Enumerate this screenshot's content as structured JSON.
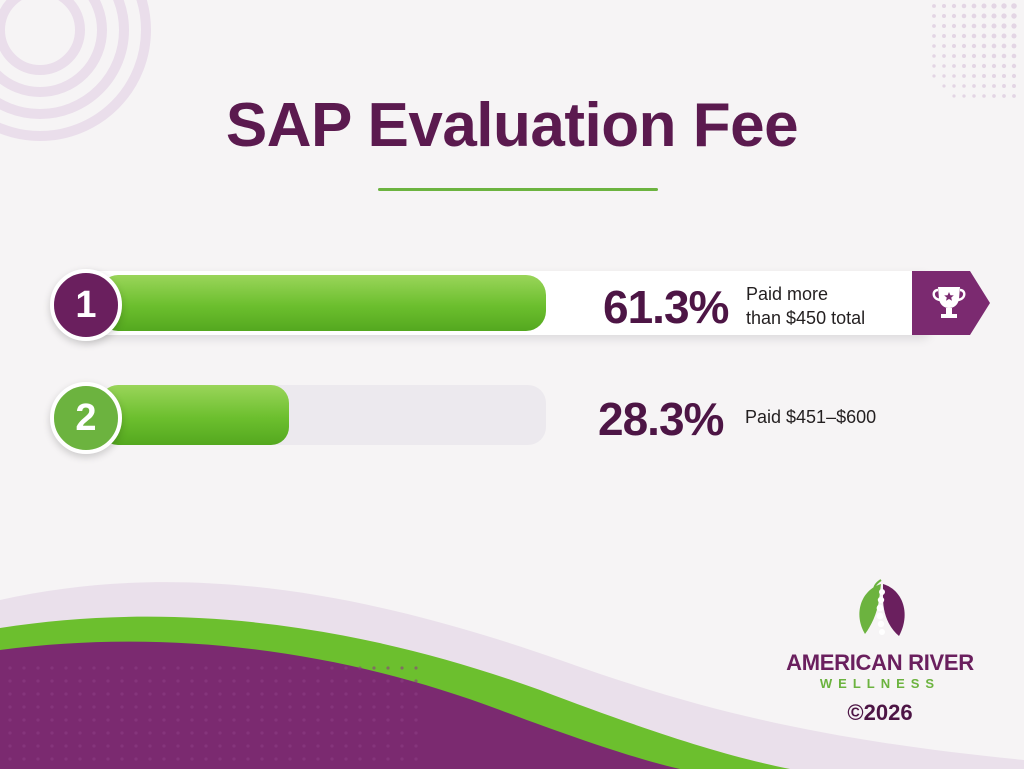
{
  "title": "SAP Evaluation Fee",
  "colors": {
    "accent_purple": "#5b1a4f",
    "accent_green": "#6cb33f",
    "track_bg": "#ece9ee"
  },
  "chart_data": {
    "type": "bar",
    "orientation": "horizontal",
    "title": "SAP Evaluation Fee",
    "xlim": [
      0,
      100
    ],
    "grid": false,
    "categories": [
      "1",
      "2"
    ],
    "values": [
      61.3,
      28.3
    ],
    "value_labels": [
      "61.3%",
      "28.3%"
    ],
    "descriptions": [
      [
        "Paid more",
        "than $450 total"
      ],
      [
        "Paid $451–$600"
      ]
    ],
    "badge_colors": [
      "#6a1f5e",
      "#6cb33f"
    ],
    "highlight": [
      "trophy-icon",
      ""
    ]
  },
  "brand": {
    "name": "AMERICAN RIVER",
    "tagline": "WELLNESS",
    "copyright": "©2026"
  }
}
